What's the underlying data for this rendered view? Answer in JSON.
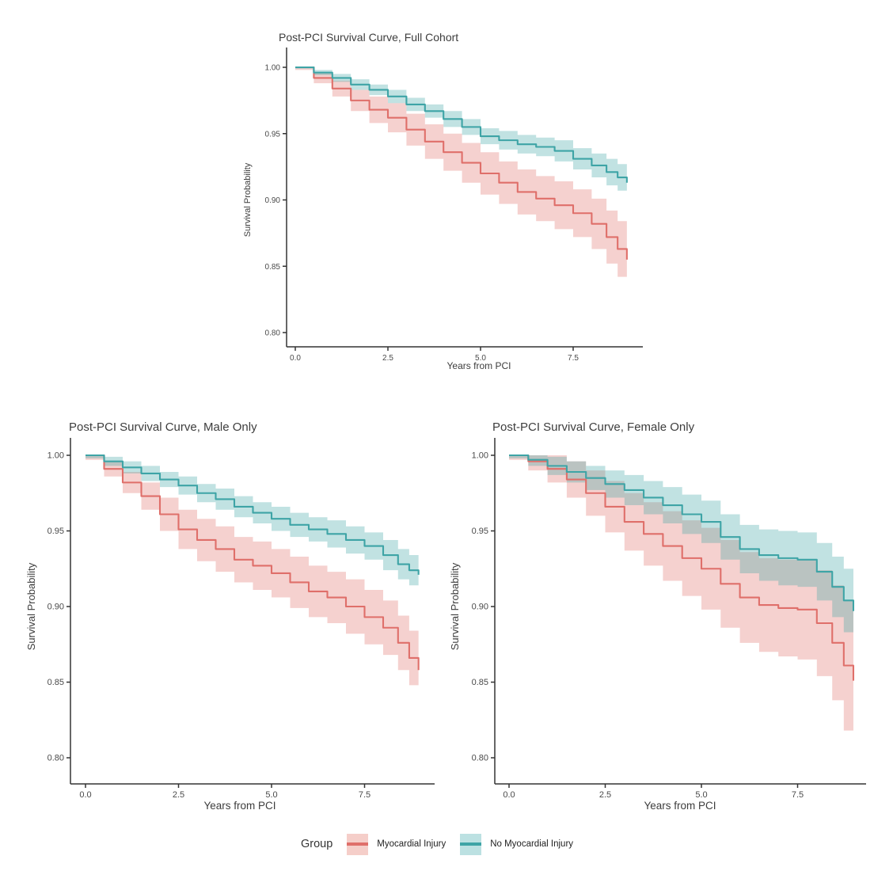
{
  "figure": {
    "background": "#ffffff",
    "legend_position": "bottom"
  },
  "legend": {
    "title": "Group",
    "items": [
      {
        "label": "Myocardial Injury",
        "line_color": "#DF6F6A",
        "fill_color": "#F5CEC9"
      },
      {
        "label": "No Myocardial Injury",
        "line_color": "#3EA4A6",
        "fill_color": "#BCE1E2"
      }
    ]
  },
  "colors": {
    "axis": "#333333",
    "title_text": "#3d3d3d",
    "tick_text": "#4a4a4a",
    "injury": "#DF6F6A",
    "no_injury": "#3EA4A6"
  },
  "chart_data": [
    {
      "type": "line",
      "subtype": "kaplan-meier-step-with-ci",
      "title": "Post-PCI Survival Curve, Full Cohort",
      "xlabel": "Years from PCI",
      "ylabel": "Survival Probability",
      "xlim": [
        0,
        9
      ],
      "ylim": [
        0.8,
        1.0
      ],
      "grid": false,
      "xticks": [
        "0.0",
        "2.5",
        "5.0",
        "7.5"
      ],
      "xtick_values": [
        0,
        2.5,
        5,
        7.5
      ],
      "yticks": [
        "1.00",
        "0.95",
        "0.90",
        "0.85",
        "0.80"
      ],
      "ytick_values": [
        1.0,
        0.95,
        0.9,
        0.85,
        0.8
      ],
      "x": [
        0,
        0.5,
        1,
        1.5,
        2,
        2.5,
        3,
        3.5,
        4,
        4.5,
        5,
        5.5,
        6,
        6.5,
        7,
        7.5,
        8,
        8.4,
        8.7,
        8.95
      ],
      "series": [
        {
          "name": "Myocardial Injury",
          "color": "#DF6F6A",
          "fill_color": "#F5CEC9",
          "values": [
            1.0,
            0.992,
            0.984,
            0.975,
            0.968,
            0.962,
            0.953,
            0.944,
            0.936,
            0.928,
            0.92,
            0.913,
            0.906,
            0.901,
            0.896,
            0.89,
            0.882,
            0.872,
            0.863,
            0.855
          ],
          "upper": [
            1.0,
            0.996,
            0.99,
            0.983,
            0.978,
            0.973,
            0.965,
            0.957,
            0.95,
            0.943,
            0.936,
            0.929,
            0.923,
            0.918,
            0.914,
            0.908,
            0.901,
            0.892,
            0.884,
            0.877
          ],
          "lower": [
            0.998,
            0.988,
            0.978,
            0.967,
            0.958,
            0.951,
            0.941,
            0.931,
            0.922,
            0.913,
            0.904,
            0.897,
            0.889,
            0.884,
            0.878,
            0.872,
            0.863,
            0.852,
            0.842,
            0.833
          ]
        },
        {
          "name": "No Myocardial Injury",
          "color": "#3EA4A6",
          "fill_color": "#BCE1E2",
          "values": [
            1.0,
            0.996,
            0.992,
            0.987,
            0.983,
            0.978,
            0.972,
            0.967,
            0.961,
            0.955,
            0.948,
            0.945,
            0.942,
            0.94,
            0.937,
            0.931,
            0.926,
            0.921,
            0.917,
            0.913
          ],
          "upper": [
            1.0,
            0.998,
            0.995,
            0.991,
            0.987,
            0.983,
            0.977,
            0.972,
            0.967,
            0.961,
            0.954,
            0.952,
            0.949,
            0.947,
            0.945,
            0.939,
            0.935,
            0.931,
            0.927,
            0.924
          ],
          "lower": [
            0.999,
            0.994,
            0.989,
            0.983,
            0.979,
            0.973,
            0.967,
            0.962,
            0.955,
            0.949,
            0.942,
            0.938,
            0.935,
            0.933,
            0.929,
            0.923,
            0.917,
            0.911,
            0.907,
            0.902
          ]
        }
      ]
    },
    {
      "type": "line",
      "subtype": "kaplan-meier-step-with-ci",
      "title": "Post-PCI Survival Curve, Male Only",
      "xlabel": "Years from PCI",
      "ylabel": "Survival Probability",
      "xlim": [
        0,
        9
      ],
      "ylim": [
        0.8,
        1.0
      ],
      "grid": false,
      "xticks": [
        "0.0",
        "2.5",
        "5.0",
        "7.5"
      ],
      "xtick_values": [
        0,
        2.5,
        5,
        7.5
      ],
      "yticks": [
        "1.00",
        "0.95",
        "0.90",
        "0.85",
        "0.80"
      ],
      "ytick_values": [
        1.0,
        0.95,
        0.9,
        0.85,
        0.8
      ],
      "x": [
        0,
        0.5,
        1,
        1.5,
        2,
        2.5,
        3,
        3.5,
        4,
        4.5,
        5,
        5.5,
        6,
        6.5,
        7,
        7.5,
        8,
        8.4,
        8.7,
        8.95
      ],
      "series": [
        {
          "name": "Myocardial Injury",
          "color": "#DF6F6A",
          "fill_color": "#F5CEC9",
          "values": [
            1.0,
            0.991,
            0.982,
            0.973,
            0.961,
            0.951,
            0.944,
            0.938,
            0.931,
            0.927,
            0.922,
            0.916,
            0.91,
            0.906,
            0.9,
            0.893,
            0.886,
            0.876,
            0.866,
            0.858
          ],
          "upper": [
            1.0,
            0.996,
            0.989,
            0.982,
            0.972,
            0.964,
            0.958,
            0.953,
            0.946,
            0.943,
            0.938,
            0.933,
            0.927,
            0.923,
            0.918,
            0.911,
            0.904,
            0.894,
            0.884,
            0.876
          ],
          "lower": [
            0.997,
            0.986,
            0.975,
            0.964,
            0.95,
            0.938,
            0.93,
            0.923,
            0.916,
            0.911,
            0.906,
            0.899,
            0.893,
            0.889,
            0.882,
            0.875,
            0.868,
            0.858,
            0.848,
            0.84
          ]
        },
        {
          "name": "No Myocardial Injury",
          "color": "#3EA4A6",
          "fill_color": "#BCE1E2",
          "values": [
            1.0,
            0.996,
            0.992,
            0.988,
            0.984,
            0.98,
            0.975,
            0.971,
            0.966,
            0.962,
            0.958,
            0.954,
            0.951,
            0.948,
            0.944,
            0.94,
            0.934,
            0.928,
            0.924,
            0.921
          ],
          "upper": [
            1.0,
            0.999,
            0.996,
            0.993,
            0.989,
            0.986,
            0.981,
            0.978,
            0.973,
            0.969,
            0.966,
            0.962,
            0.959,
            0.957,
            0.953,
            0.949,
            0.944,
            0.938,
            0.934,
            0.931
          ],
          "lower": [
            0.998,
            0.993,
            0.988,
            0.983,
            0.979,
            0.974,
            0.969,
            0.964,
            0.959,
            0.955,
            0.95,
            0.946,
            0.943,
            0.939,
            0.935,
            0.931,
            0.924,
            0.918,
            0.914,
            0.911
          ]
        }
      ]
    },
    {
      "type": "line",
      "subtype": "kaplan-meier-step-with-ci",
      "title": "Post-PCI Survival Curve, Female Only",
      "xlabel": "Years from PCI",
      "ylabel": "Survival Probability",
      "xlim": [
        0,
        9
      ],
      "ylim": [
        0.8,
        1.0
      ],
      "grid": false,
      "xticks": [
        "0.0",
        "2.5",
        "5.0",
        "7.5"
      ],
      "xtick_values": [
        0,
        2.5,
        5,
        7.5
      ],
      "yticks": [
        "1.00",
        "0.95",
        "0.90",
        "0.85",
        "0.80"
      ],
      "ytick_values": [
        1.0,
        0.95,
        0.9,
        0.85,
        0.8
      ],
      "x": [
        0,
        0.5,
        1,
        1.5,
        2,
        2.5,
        3,
        3.5,
        4,
        4.5,
        5,
        5.5,
        6,
        6.5,
        7,
        7.5,
        8,
        8.4,
        8.7,
        8.95
      ],
      "series": [
        {
          "name": "Myocardial Injury",
          "color": "#DF6F6A",
          "fill_color": "#F5CEC9",
          "values": [
            1.0,
            0.996,
            0.991,
            0.984,
            0.975,
            0.966,
            0.956,
            0.948,
            0.94,
            0.932,
            0.925,
            0.915,
            0.906,
            0.901,
            0.899,
            0.898,
            0.889,
            0.876,
            0.861,
            0.851
          ],
          "upper": [
            1.0,
            1.0,
            1.0,
            0.996,
            0.99,
            0.983,
            0.975,
            0.969,
            0.963,
            0.957,
            0.952,
            0.944,
            0.936,
            0.932,
            0.931,
            0.931,
            0.924,
            0.914,
            0.904,
            0.898
          ],
          "lower": [
            0.997,
            0.99,
            0.982,
            0.972,
            0.96,
            0.949,
            0.937,
            0.927,
            0.917,
            0.907,
            0.898,
            0.886,
            0.876,
            0.87,
            0.867,
            0.865,
            0.854,
            0.838,
            0.818,
            0.804
          ]
        },
        {
          "name": "No Myocardial Injury",
          "color": "#3EA4A6",
          "fill_color": "#BCE1E2",
          "values": [
            1.0,
            0.997,
            0.993,
            0.989,
            0.985,
            0.981,
            0.977,
            0.972,
            0.967,
            0.961,
            0.956,
            0.946,
            0.938,
            0.934,
            0.932,
            0.931,
            0.923,
            0.913,
            0.904,
            0.897
          ],
          "upper": [
            1.0,
            1.0,
            0.999,
            0.996,
            0.993,
            0.99,
            0.987,
            0.983,
            0.979,
            0.974,
            0.97,
            0.961,
            0.954,
            0.951,
            0.95,
            0.949,
            0.942,
            0.933,
            0.925,
            0.919
          ],
          "lower": [
            0.998,
            0.993,
            0.987,
            0.982,
            0.977,
            0.972,
            0.967,
            0.961,
            0.955,
            0.948,
            0.942,
            0.931,
            0.922,
            0.917,
            0.914,
            0.913,
            0.904,
            0.893,
            0.883,
            0.875
          ]
        }
      ]
    }
  ]
}
